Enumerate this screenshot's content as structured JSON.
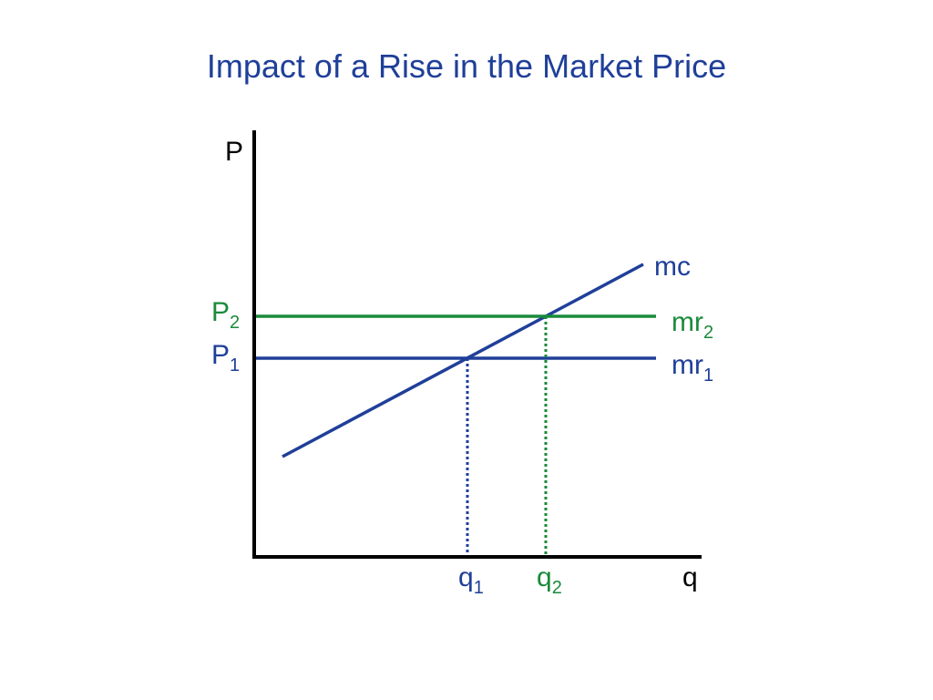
{
  "title": "Impact of a Rise in the Market Price",
  "colors": {
    "title": "#1f3f99",
    "navy": "#1f3f99",
    "green": "#1a8a3a",
    "axis": "#000000"
  },
  "axes": {
    "y_label": "P",
    "x_label": "q"
  },
  "labels": {
    "p2": {
      "base": "P",
      "sub": "2"
    },
    "p1": {
      "base": "P",
      "sub": "1"
    },
    "mc": "mc",
    "mr2": {
      "base": "mr",
      "sub": "2"
    },
    "mr1": {
      "base": "mr",
      "sub": "1"
    },
    "q1": {
      "base": "q",
      "sub": "1"
    },
    "q2": {
      "base": "q",
      "sub": "2"
    }
  }
}
